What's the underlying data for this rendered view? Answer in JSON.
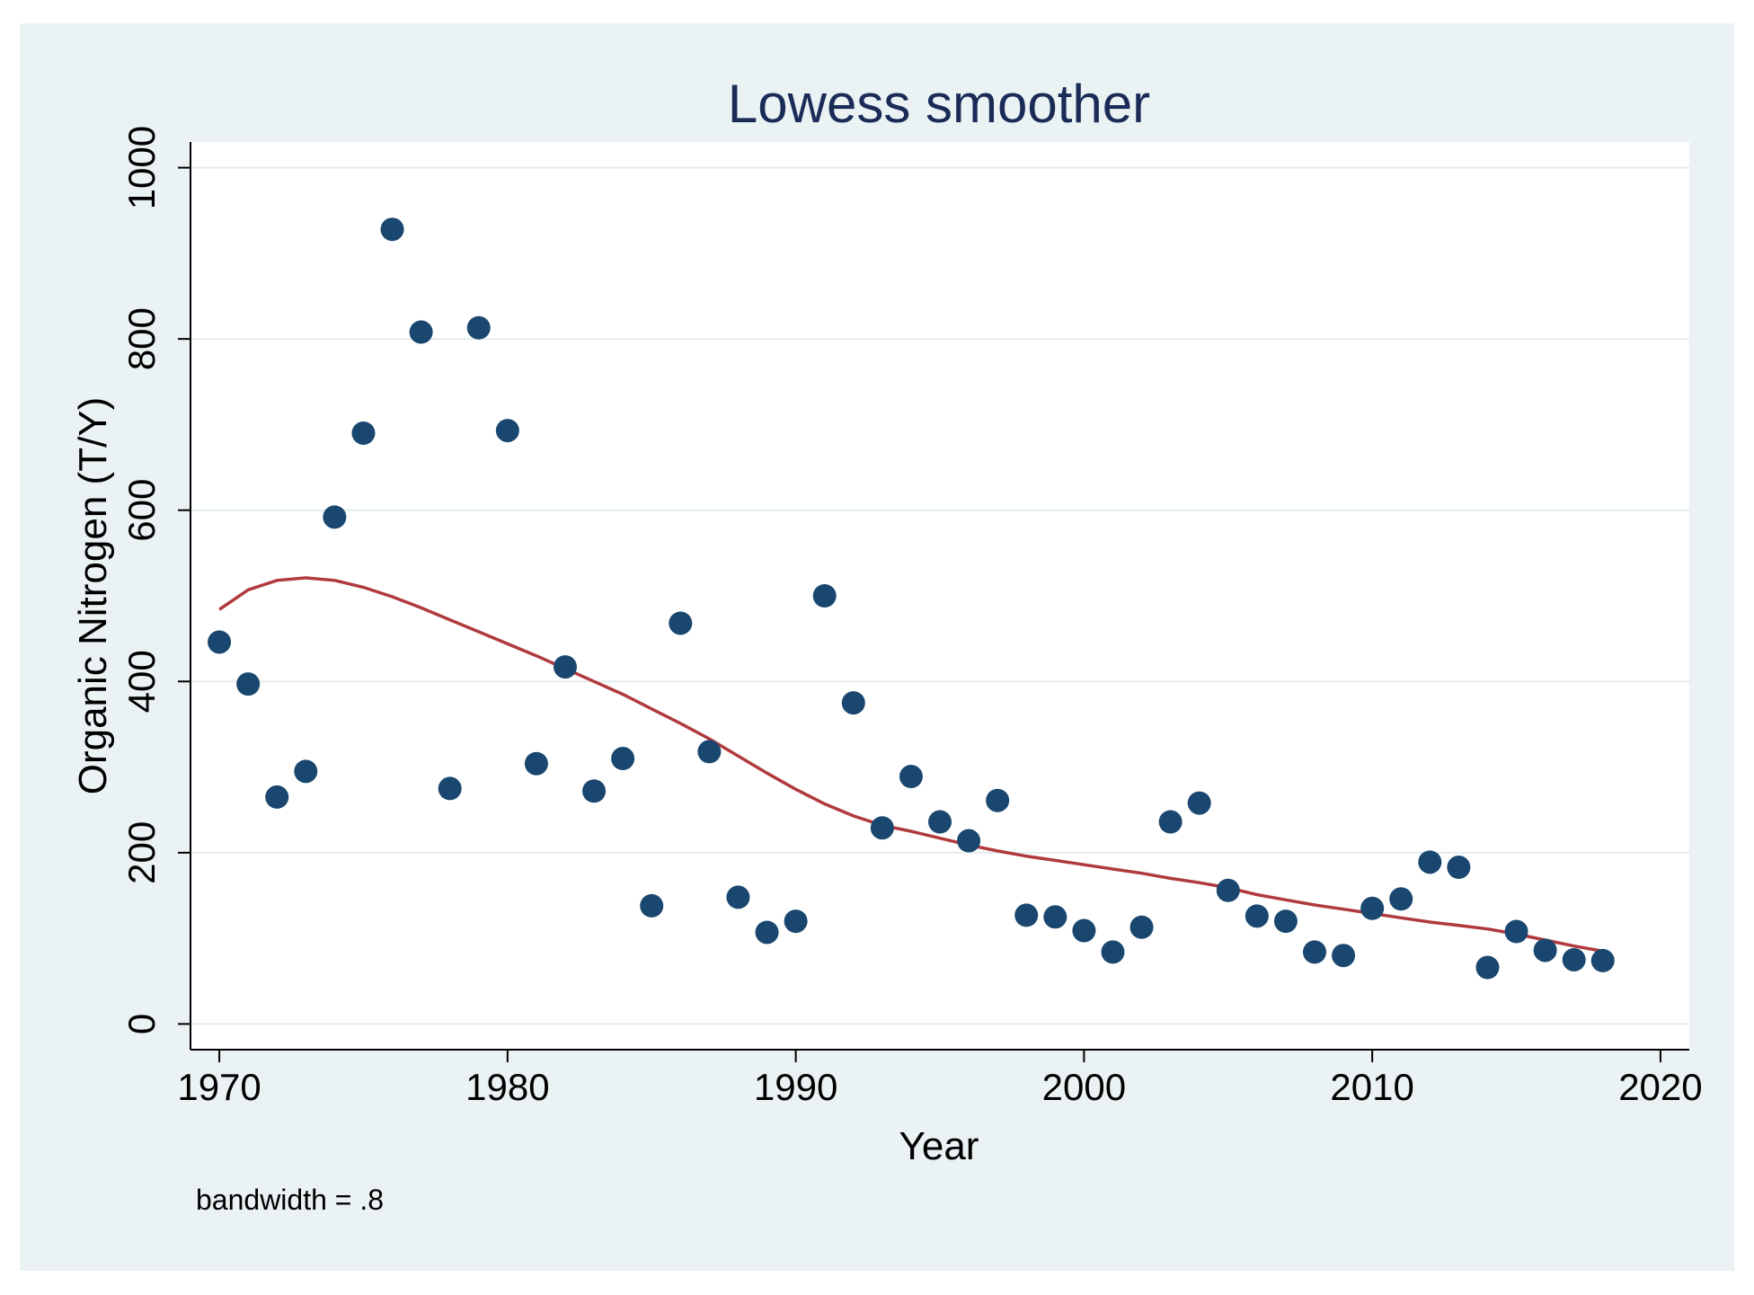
{
  "chart_data": {
    "type": "scatter",
    "title": "Lowess smoother",
    "xlabel": "Year",
    "ylabel": "Organic Nitrogen (T/Y)",
    "note": "bandwidth = .8",
    "xlim": [
      1969,
      2021
    ],
    "ylim": [
      -30,
      1030
    ],
    "xticks": [
      1970,
      1980,
      1990,
      2000,
      2010,
      2020
    ],
    "yticks": [
      0,
      200,
      400,
      600,
      800,
      1000
    ],
    "grid": true,
    "colors": {
      "points": "#1a476f",
      "line": "#b03a3e",
      "background": "#eaf2f3",
      "plot": "#ffffff",
      "grid": "#e4ecee",
      "title": "#1a2b57"
    },
    "series": [
      {
        "name": "Organic Nitrogen",
        "kind": "scatter",
        "x": [
          1970,
          1971,
          1972,
          1973,
          1974,
          1975,
          1976,
          1977,
          1978,
          1979,
          1980,
          1981,
          1982,
          1983,
          1984,
          1985,
          1986,
          1987,
          1988,
          1989,
          1990,
          1991,
          1992,
          1993,
          1994,
          1995,
          1996,
          1997,
          1998,
          1999,
          2000,
          2001,
          2002,
          2003,
          2004,
          2005,
          2006,
          2007,
          2008,
          2009,
          2010,
          2011,
          2012,
          2013,
          2014,
          2015,
          2016,
          2017,
          2018
        ],
        "y": [
          446,
          397,
          265,
          295,
          592,
          690,
          928,
          808,
          275,
          813,
          693,
          304,
          417,
          272,
          310,
          138,
          468,
          318,
          148,
          107,
          120,
          500,
          375,
          229,
          289,
          236,
          214,
          261,
          127,
          125,
          109,
          84,
          113,
          236,
          258,
          156,
          126,
          120,
          84,
          80,
          135,
          146,
          189,
          183,
          66,
          108,
          86,
          75,
          74
        ]
      },
      {
        "name": "Lowess smoother",
        "kind": "line",
        "x": [
          1970,
          1971,
          1972,
          1973,
          1974,
          1975,
          1976,
          1977,
          1978,
          1979,
          1980,
          1981,
          1982,
          1983,
          1984,
          1985,
          1986,
          1987,
          1988,
          1989,
          1990,
          1991,
          1992,
          1993,
          1994,
          1995,
          1996,
          1997,
          1998,
          1999,
          2000,
          2001,
          2002,
          2003,
          2004,
          2005,
          2006,
          2007,
          2008,
          2009,
          2010,
          2011,
          2012,
          2013,
          2014,
          2015,
          2016,
          2017,
          2018
        ],
        "y": [
          484,
          507,
          518,
          521,
          518,
          510,
          499,
          486,
          472,
          458,
          444,
          430,
          415,
          400,
          385,
          368,
          351,
          333,
          313,
          293,
          274,
          257,
          243,
          232,
          225,
          217,
          209,
          202,
          196,
          191,
          186,
          181,
          176,
          170,
          165,
          159,
          151,
          145,
          139,
          134,
          129,
          124,
          119,
          115,
          111,
          105,
          98,
          91,
          85
        ]
      }
    ]
  }
}
